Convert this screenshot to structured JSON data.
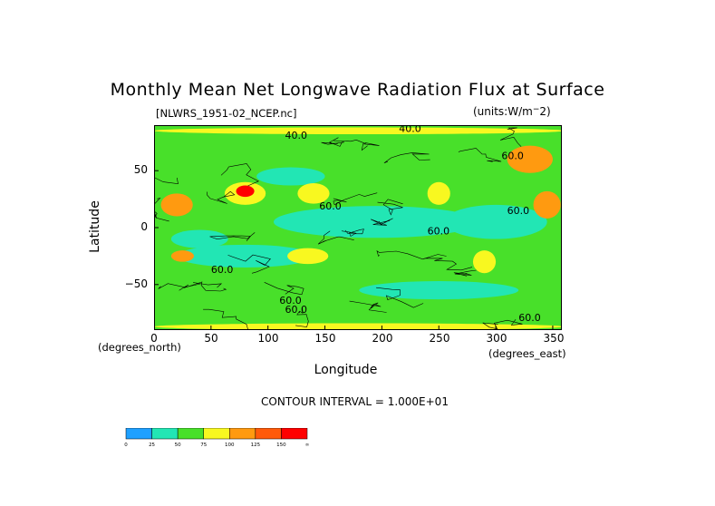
{
  "chart_data": {
    "type": "heatmap",
    "title": "Monthly Mean Net Longwave Radiation Flux at Surface",
    "file_label": "[NLWRS_1951-02_NCEP.nc]",
    "units_label": "(units:W/m^-2)",
    "xlabel": "Longitude",
    "ylabel": "Latitude",
    "x_sub_left": "(degrees_north)",
    "x_sub_right": "(degrees_east)",
    "xlim": [
      0,
      358
    ],
    "ylim": [
      -90,
      90
    ],
    "x_ticks": [
      "0",
      "50",
      "100",
      "150",
      "200",
      "250",
      "300",
      "350"
    ],
    "x_tick_values": [
      0,
      50,
      100,
      150,
      200,
      250,
      300,
      350
    ],
    "y_ticks": [
      "50",
      "0",
      "−50"
    ],
    "y_tick_values": [
      50,
      0,
      -50
    ],
    "contour_interval_text": "CONTOUR INTERVAL = 1.000E+01",
    "contour_labels": [
      {
        "text": "40.0",
        "lon": 115,
        "lat": 78
      },
      {
        "text": "40.0",
        "lon": 215,
        "lat": 84
      },
      {
        "text": "60.0",
        "lon": 145,
        "lat": 16
      },
      {
        "text": "60.0",
        "lon": 305,
        "lat": 60
      },
      {
        "text": "60.0",
        "lon": 310,
        "lat": 12
      },
      {
        "text": "60.0",
        "lon": 240,
        "lat": -6
      },
      {
        "text": "60.0",
        "lon": 50,
        "lat": -40
      },
      {
        "text": "60.0",
        "lon": 110,
        "lat": -67
      },
      {
        "text": "60.0",
        "lon": 115,
        "lat": -75
      },
      {
        "text": "60.0",
        "lon": 320,
        "lat": -82
      }
    ],
    "colorbar": {
      "levels": [
        "0",
        "25",
        "50",
        "75",
        "100",
        "125",
        "150",
        "∞"
      ],
      "colors": [
        "#1ea0ff",
        "#22e6b4",
        "#48e02a",
        "#f8f820",
        "#ff9a10",
        "#ff5a0a",
        "#ff0000"
      ]
    },
    "grid": false
  }
}
